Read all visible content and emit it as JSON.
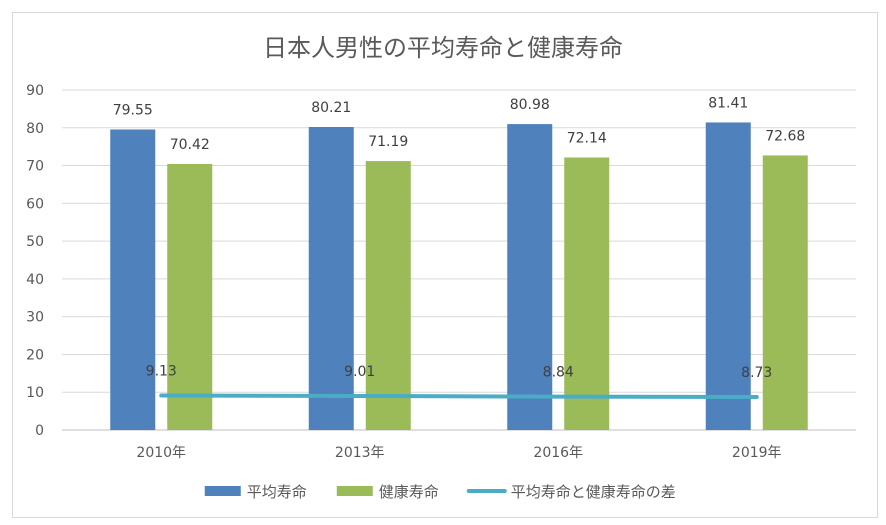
{
  "chart_data": {
    "type": "bar",
    "title": "日本人男性の平均寿命と健康寿命",
    "categories": [
      "2010年",
      "2013年",
      "2016年",
      "2019年"
    ],
    "series": [
      {
        "name": "平均寿命",
        "type": "bar",
        "color": "#4f81bd",
        "values": [
          79.55,
          80.21,
          80.98,
          81.41
        ]
      },
      {
        "name": "健康寿命",
        "type": "bar",
        "color": "#9bbb59",
        "values": [
          70.42,
          71.19,
          72.14,
          72.68
        ]
      },
      {
        "name": "平均寿命と健康寿命の差",
        "type": "line",
        "color": "#4bacc6",
        "values": [
          9.13,
          9.01,
          8.84,
          8.73
        ]
      }
    ],
    "ylim": [
      0,
      90
    ],
    "yticks": [
      0,
      10,
      20,
      30,
      40,
      50,
      60,
      70,
      80,
      90
    ],
    "grid": true,
    "legend": "bottom",
    "xlabel": "",
    "ylabel": ""
  }
}
